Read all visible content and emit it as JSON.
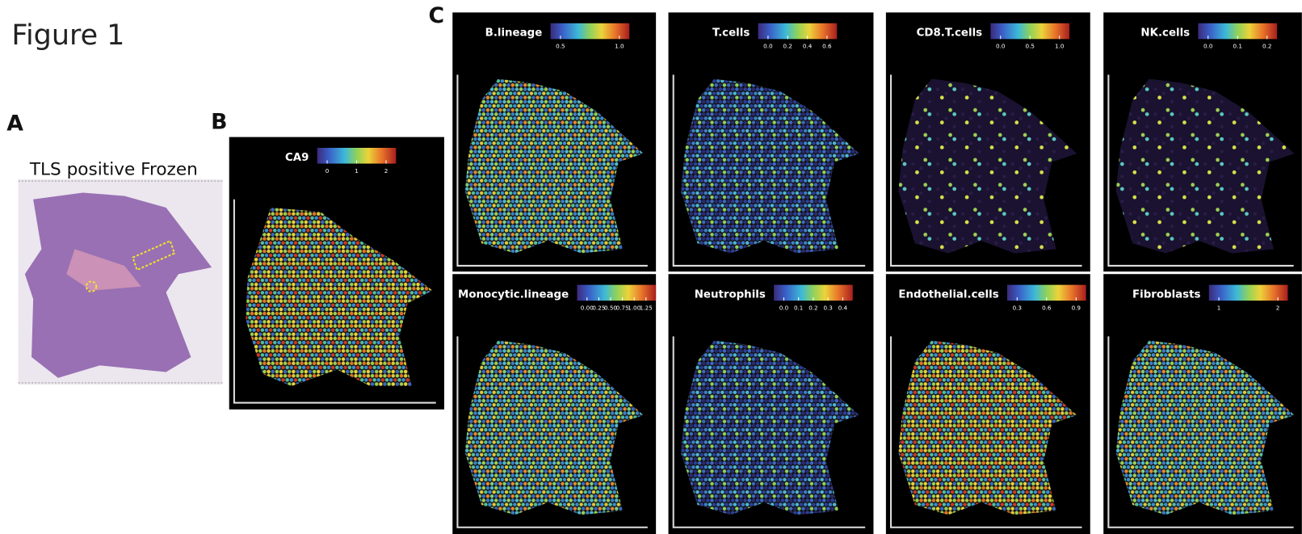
{
  "header": {
    "title": "Figure 1"
  },
  "panel_a": {
    "label": "A",
    "caption": "TLS positive Frozen"
  },
  "panel_b": {
    "label": "B",
    "plots": [
      {
        "name": "CA9",
        "colorbar_ticks": [
          "0",
          "1",
          "2"
        ]
      }
    ]
  },
  "panel_c": {
    "label": "C",
    "plots": [
      {
        "name": "B.lineage",
        "colorbar_ticks": [
          "0.5",
          "1.0"
        ]
      },
      {
        "name": "T.cells",
        "colorbar_ticks": [
          "0.0",
          "0.2",
          "0.4",
          "0.6"
        ]
      },
      {
        "name": "CD8.T.cells",
        "colorbar_ticks": [
          "0.0",
          "0.5",
          "1.0"
        ]
      },
      {
        "name": "NK.cells",
        "colorbar_ticks": [
          "0.0",
          "0.1",
          "0.2"
        ]
      },
      {
        "name": "Monocytic.lineage",
        "colorbar_ticks": [
          "0.00",
          "0.25",
          "0.50",
          "0.75",
          "1.00",
          "1.25"
        ]
      },
      {
        "name": "Neutrophils",
        "colorbar_ticks": [
          "0.0",
          "0.1",
          "0.2",
          "0.3",
          "0.4"
        ]
      },
      {
        "name": "Endothelial.cells",
        "colorbar_ticks": [
          "0.3",
          "0.6",
          "0.9"
        ]
      },
      {
        "name": "Fibroblasts",
        "colorbar_ticks": [
          "1",
          "2"
        ]
      }
    ]
  }
}
